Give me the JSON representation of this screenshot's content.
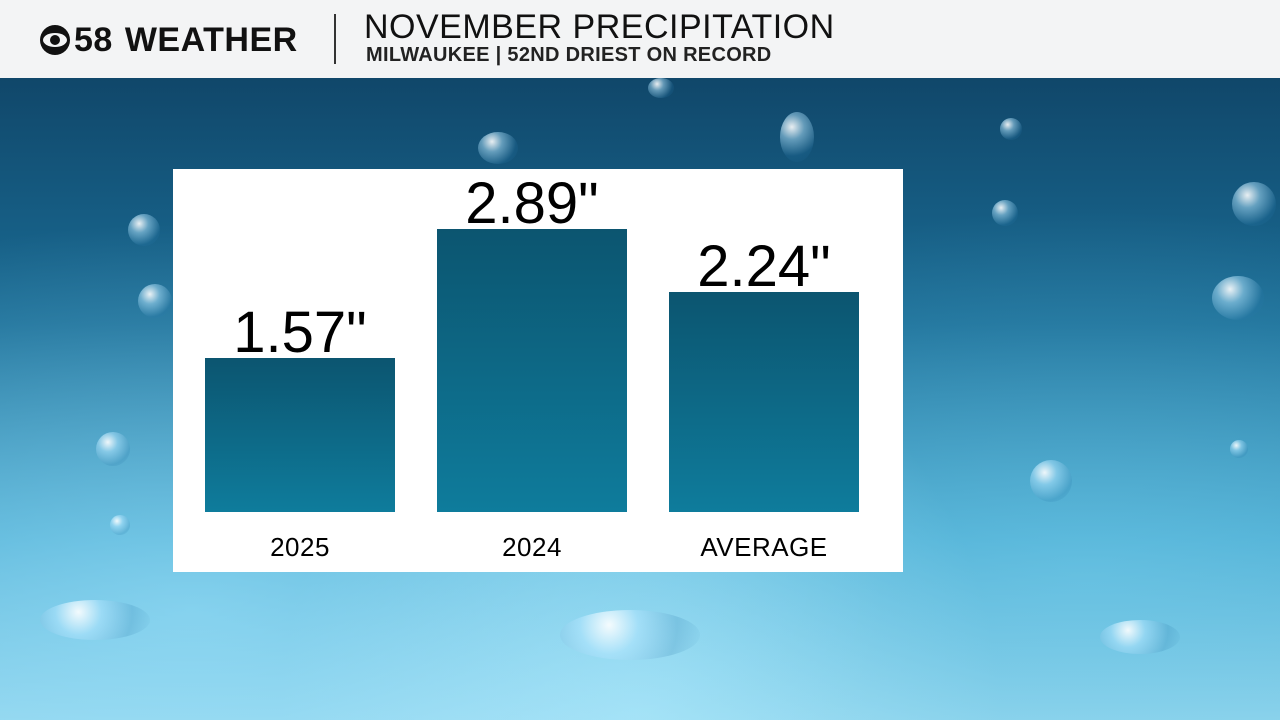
{
  "header": {
    "logo_text": "●58 WEATHER",
    "logo_number": "58",
    "logo_word": "WEATHER",
    "title": "NOVEMBER PRECIPITATION",
    "subtitle": "MILWAUKEE | 52ND DRIEST ON RECORD"
  },
  "chart_data": {
    "type": "bar",
    "title": "NOVEMBER PRECIPITATION",
    "subtitle": "MILWAUKEE | 52ND DRIEST ON RECORD",
    "categories": [
      "2025",
      "2024",
      "AVERAGE"
    ],
    "values": [
      1.57,
      2.89,
      2.24
    ],
    "value_labels": [
      "1.57\"",
      "2.89\"",
      "2.24\""
    ],
    "unit": "inches",
    "ylim": [
      0,
      3.1
    ],
    "xlabel": "",
    "ylabel": "",
    "bar_color": "#0e6f8f"
  }
}
